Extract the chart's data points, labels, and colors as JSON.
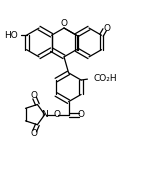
{
  "line_color": "#000000",
  "bg_color": "#ffffff",
  "lw": 0.9,
  "figsize": [
    1.54,
    1.73
  ],
  "dpi": 100,
  "xlim": [
    0,
    10
  ],
  "ylim": [
    0,
    11.3
  ]
}
